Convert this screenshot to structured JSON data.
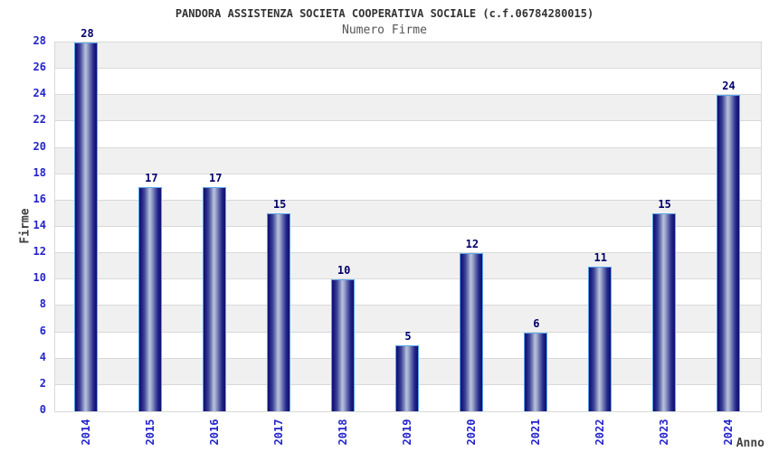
{
  "chart_data": {
    "type": "bar",
    "title": "PANDORA ASSISTENZA SOCIETA COOPERATIVA SOCIALE (c.f.06784280015)",
    "subtitle": "Numero Firme",
    "xlabel": "Anno",
    "ylabel": "Firme",
    "categories": [
      "2014",
      "2015",
      "2016",
      "2017",
      "2018",
      "2019",
      "2020",
      "2021",
      "2022",
      "2023",
      "2024"
    ],
    "values": [
      28,
      17,
      17,
      15,
      10,
      5,
      12,
      6,
      11,
      15,
      24
    ],
    "ylim": [
      0,
      28
    ],
    "ytick_step": 2,
    "grid": true,
    "legend": "none",
    "colors": {
      "bar_dark": "#0f0f6e",
      "bar_light": "#b9c1dc",
      "bar_border": "#58a6e8",
      "tick_label": "#2323cd",
      "value_label": "#00006a",
      "band": "#f0f0f0",
      "gridline": "#d9d9d9",
      "title": "#333333",
      "subtitle": "#555555",
      "axis_label": "#404040"
    }
  }
}
